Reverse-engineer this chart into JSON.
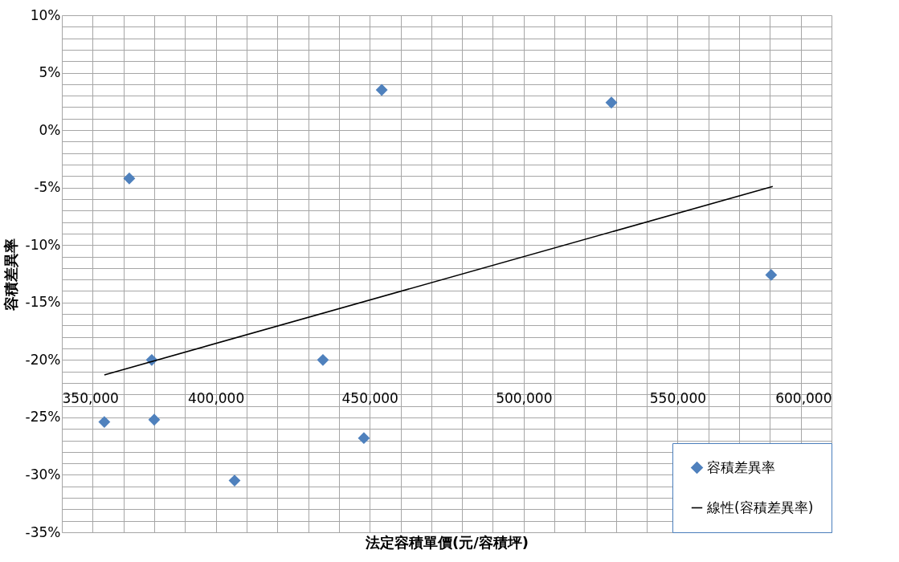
{
  "chart_data": {
    "type": "scatter",
    "xlabel": "法定容積單價(元/容積坪)",
    "ylabel": "容積差異率",
    "xlim": [
      350000,
      600000
    ],
    "ylim": [
      -35,
      10
    ],
    "xticks": [
      {
        "value": 350000,
        "label": "350,000"
      },
      {
        "value": 360000,
        "label": null
      },
      {
        "value": 370000,
        "label": null
      },
      {
        "value": 380000,
        "label": null
      },
      {
        "value": 390000,
        "label": null
      },
      {
        "value": 400000,
        "label": "400,000"
      },
      {
        "value": 410000,
        "label": null
      },
      {
        "value": 420000,
        "label": null
      },
      {
        "value": 430000,
        "label": null
      },
      {
        "value": 440000,
        "label": null
      },
      {
        "value": 450000,
        "label": "450,000"
      },
      {
        "value": 460000,
        "label": null
      },
      {
        "value": 470000,
        "label": null
      },
      {
        "value": 480000,
        "label": null
      },
      {
        "value": 490000,
        "label": null
      },
      {
        "value": 500000,
        "label": "500,000"
      },
      {
        "value": 510000,
        "label": null
      },
      {
        "value": 520000,
        "label": null
      },
      {
        "value": 530000,
        "label": null
      },
      {
        "value": 540000,
        "label": null
      },
      {
        "value": 550000,
        "label": "550,000"
      },
      {
        "value": 560000,
        "label": null
      },
      {
        "value": 570000,
        "label": null
      },
      {
        "value": 580000,
        "label": null
      },
      {
        "value": 590000,
        "label": null
      },
      {
        "value": 600000,
        "label": "600,000"
      }
    ],
    "yticks": [
      {
        "value": -35,
        "label": "-35%"
      },
      {
        "value": -34,
        "label": null
      },
      {
        "value": -33,
        "label": null
      },
      {
        "value": -32,
        "label": null
      },
      {
        "value": -31,
        "label": null
      },
      {
        "value": -30,
        "label": "-30%"
      },
      {
        "value": -29,
        "label": null
      },
      {
        "value": -28,
        "label": null
      },
      {
        "value": -27,
        "label": null
      },
      {
        "value": -26,
        "label": null
      },
      {
        "value": -25,
        "label": "-25%"
      },
      {
        "value": -24,
        "label": null
      },
      {
        "value": -23,
        "label": null
      },
      {
        "value": -22,
        "label": null
      },
      {
        "value": -21,
        "label": null
      },
      {
        "value": -20,
        "label": "-20%"
      },
      {
        "value": -19,
        "label": null
      },
      {
        "value": -18,
        "label": null
      },
      {
        "value": -17,
        "label": null
      },
      {
        "value": -16,
        "label": null
      },
      {
        "value": -15,
        "label": "-15%"
      },
      {
        "value": -14,
        "label": null
      },
      {
        "value": -13,
        "label": null
      },
      {
        "value": -12,
        "label": null
      },
      {
        "value": -11,
        "label": null
      },
      {
        "value": -10,
        "label": "-10%"
      },
      {
        "value": -9,
        "label": null
      },
      {
        "value": -8,
        "label": null
      },
      {
        "value": -7,
        "label": null
      },
      {
        "value": -6,
        "label": null
      },
      {
        "value": -5,
        "label": "-5%"
      },
      {
        "value": -4,
        "label": null
      },
      {
        "value": -3,
        "label": null
      },
      {
        "value": -2,
        "label": null
      },
      {
        "value": -1,
        "label": null
      },
      {
        "value": 0,
        "label": "0%"
      },
      {
        "value": 1,
        "label": null
      },
      {
        "value": 2,
        "label": null
      },
      {
        "value": 3,
        "label": null
      },
      {
        "value": 4,
        "label": null
      },
      {
        "value": 5,
        "label": "5%"
      },
      {
        "value": 6,
        "label": null
      },
      {
        "value": 7,
        "label": null
      },
      {
        "value": 8,
        "label": null
      },
      {
        "value": 9,
        "label": null
      },
      {
        "value": 10,
        "label": "10%"
      }
    ],
    "grid": true,
    "legend": "bottom right",
    "marker": "diamond",
    "series": [
      {
        "name": "容積差異率",
        "color": "#4f81bd",
        "x": [
          363800,
          371900,
          379200,
          380000,
          406100,
          434800,
          448100,
          453900,
          528500,
          580400
        ],
        "values": [
          -25.4,
          -4.2,
          -20.0,
          -25.2,
          -30.5,
          -20.0,
          -26.8,
          3.5,
          2.4,
          -12.6
        ]
      },
      {
        "name": "線性(容積差異率)",
        "type": "line",
        "marker": "none",
        "color": "#000000",
        "x": [
          363800,
          580900
        ],
        "values": [
          -21.3,
          -4.9
        ]
      }
    ]
  }
}
